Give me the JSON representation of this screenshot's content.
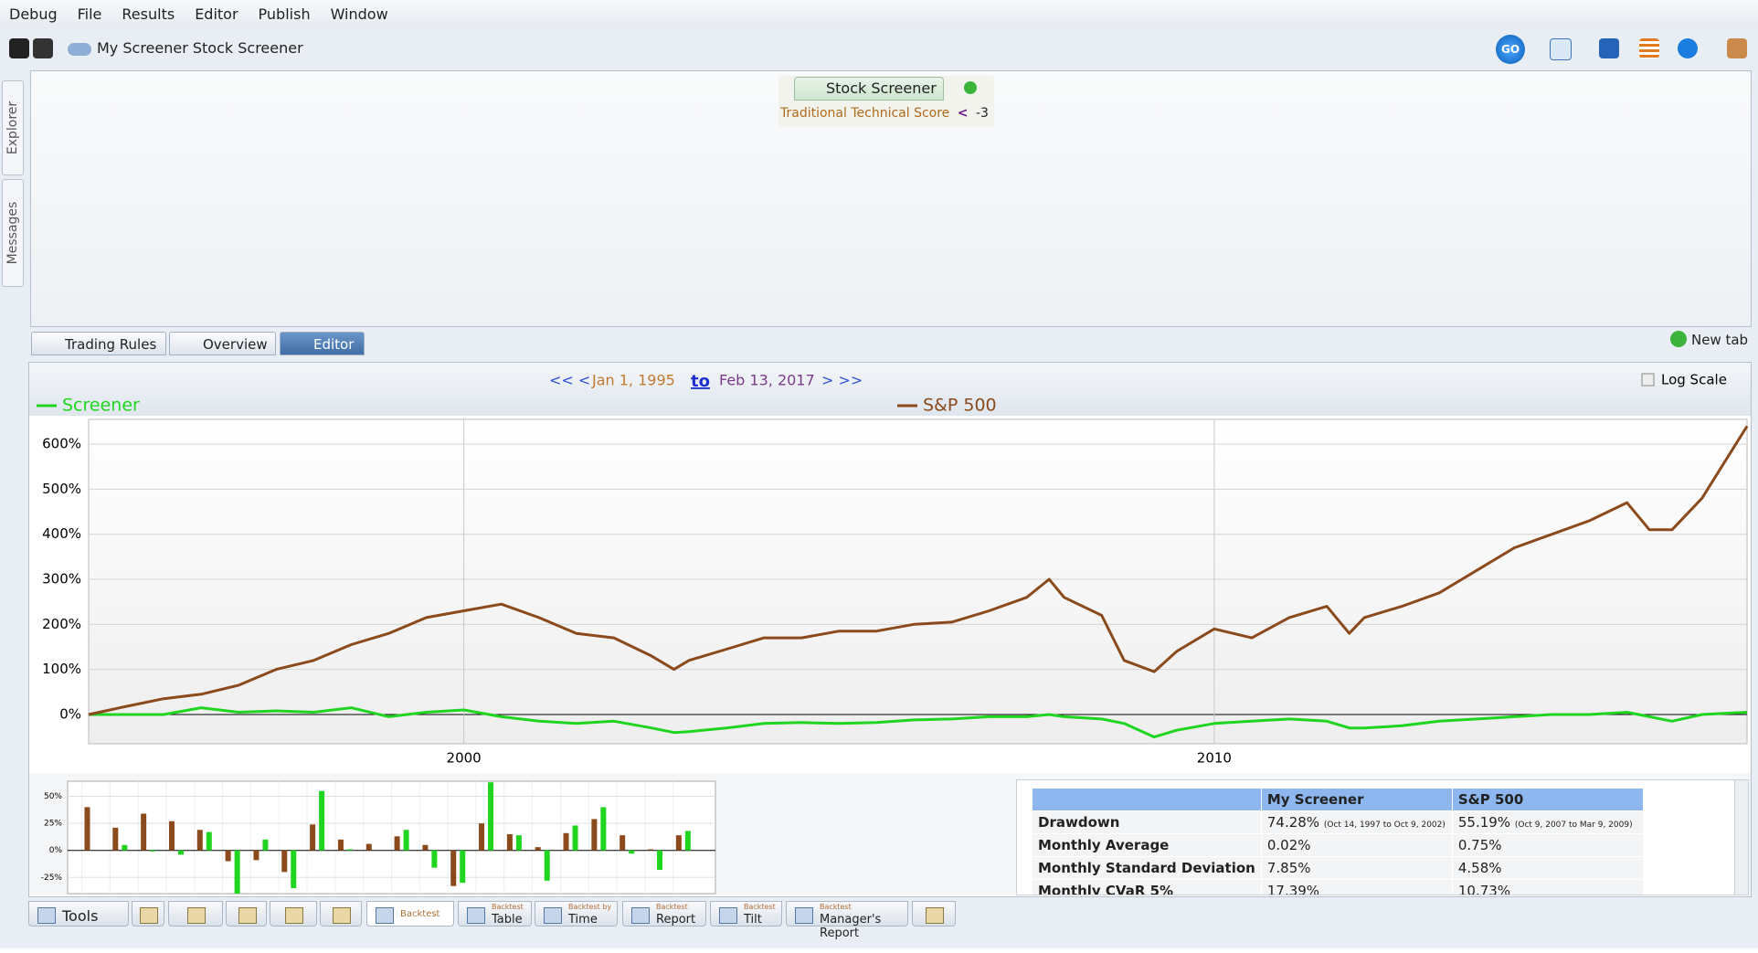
{
  "menu": [
    "Debug",
    "File",
    "Results",
    "Editor",
    "Publish",
    "Window"
  ],
  "toolbar": {
    "title": "My Screener Stock Screener",
    "go": "GO"
  },
  "side_tabs": [
    "Explorer",
    "Messages"
  ],
  "screener": {
    "tab": "Stock Screener",
    "rule": {
      "factor": "Traditional Technical Score",
      "operator": "<",
      "value": -3
    }
  },
  "editor_tabs": [
    "Trading Rules",
    "Overview",
    "Editor"
  ],
  "new_tab": "New tab",
  "date_range": {
    "back": "<< <",
    "start": "Jan 1, 1995",
    "to": "to",
    "end": "Feb 13, 2017",
    "forward": "> >>"
  },
  "log_scale_label": "Log Scale",
  "chart_data": [
    {
      "type": "line",
      "x": [
        1995,
        1995.5,
        1996,
        1996.5,
        1997,
        1997.5,
        1998,
        1998.5,
        1999,
        1999.5,
        2000,
        2000.5,
        2001,
        2001.5,
        2002,
        2002.5,
        2002.8,
        2003,
        2003.5,
        2004,
        2004.5,
        2005,
        2005.5,
        2006,
        2006.5,
        2007,
        2007.5,
        2007.8,
        2008,
        2008.5,
        2008.8,
        2009.2,
        2009.5,
        2010,
        2010.5,
        2011,
        2011.5,
        2011.8,
        2012,
        2012.5,
        2013,
        2013.5,
        2014,
        2014.5,
        2015,
        2015.5,
        2015.8,
        2016.1,
        2016.5,
        2017.1
      ],
      "series": [
        {
          "name": "Screener",
          "color": "#1fd51f",
          "values": [
            0,
            0,
            0,
            15,
            5,
            8,
            5,
            15,
            -5,
            5,
            10,
            -5,
            -15,
            -20,
            -15,
            -30,
            -40,
            -38,
            -30,
            -20,
            -18,
            -20,
            -18,
            -12,
            -10,
            -5,
            -5,
            0,
            -5,
            -10,
            -20,
            -50,
            -35,
            -20,
            -15,
            -10,
            -15,
            -30,
            -30,
            -25,
            -15,
            -10,
            -5,
            0,
            0,
            5,
            -5,
            -15,
            0,
            5
          ]
        },
        {
          "name": "S&P 500",
          "color": "#8b4a1c",
          "values": [
            0,
            18,
            35,
            45,
            65,
            100,
            120,
            155,
            180,
            215,
            230,
            245,
            215,
            180,
            170,
            130,
            100,
            120,
            145,
            170,
            170,
            185,
            185,
            200,
            205,
            230,
            260,
            300,
            260,
            220,
            120,
            95,
            140,
            190,
            170,
            215,
            240,
            180,
            215,
            240,
            270,
            320,
            370,
            400,
            430,
            470,
            410,
            410,
            480,
            640
          ]
        }
      ],
      "xlim": [
        1995,
        2017.1
      ],
      "xticks": [
        2000,
        2010
      ],
      "ylim": [
        -65,
        655
      ],
      "yticks": [
        {
          "value": 0,
          "label": "0%"
        },
        {
          "value": 100,
          "label": "100%"
        },
        {
          "value": 200,
          "label": "200%"
        },
        {
          "value": 300,
          "label": "300%"
        },
        {
          "value": 400,
          "label": "400%"
        },
        {
          "value": 500,
          "label": "500%"
        },
        {
          "value": 600,
          "label": "600%"
        }
      ],
      "grid": true
    },
    {
      "type": "bar",
      "categories": [
        null,
        null,
        null,
        null,
        null,
        null,
        null,
        null,
        null,
        null,
        null,
        null,
        null,
        null,
        null,
        null,
        null,
        null,
        null,
        null,
        null,
        null
      ],
      "series": [
        {
          "name": "S&P 500",
          "color": "#8b4a1c",
          "values": [
            40,
            21,
            34,
            27,
            19,
            -10,
            -9,
            -20,
            24,
            10,
            6,
            13,
            5,
            -33,
            25,
            15,
            3,
            16,
            29,
            14,
            1,
            14
          ]
        },
        {
          "name": "Screener",
          "color": "#1fd51f",
          "values": [
            0,
            5,
            -1,
            -4,
            17,
            -40,
            10,
            -35,
            55,
            1,
            0,
            19,
            -16,
            -30,
            63,
            14,
            -28,
            23,
            40,
            -3,
            -18,
            18
          ]
        }
      ],
      "ylim": [
        -40,
        64
      ],
      "yticks": [
        {
          "value": -25,
          "label": "-25%"
        },
        {
          "value": 0,
          "label": "0%"
        },
        {
          "value": 25,
          "label": "25%"
        },
        {
          "value": 50,
          "label": "50%"
        }
      ],
      "grid": true
    }
  ],
  "stats_table": {
    "header": [
      "My Screener",
      "S&P 500"
    ],
    "rows": [
      {
        "label": "Drawdown",
        "cells": [
          "74.28%",
          "55.19%"
        ],
        "notes": [
          "(Oct 14, 1997 to Oct 9, 2002)",
          "(Oct 9, 2007 to Mar 9, 2009)"
        ]
      },
      {
        "label": "Monthly Average",
        "cells": [
          "0.02%",
          "0.75%"
        ]
      },
      {
        "label": "Monthly Standard Deviation",
        "cells": [
          "7.85%",
          "4.58%"
        ]
      },
      {
        "label": "Monthly CVaR 5%",
        "cells": [
          "17.39%",
          "10.73%"
        ]
      }
    ]
  },
  "bottom_tabs": [
    {
      "label": "Tools"
    },
    {
      "label": "Backtest"
    },
    {
      "caption": "Backtest",
      "label": "Table"
    },
    {
      "caption": "Backtest by",
      "label": "Time"
    },
    {
      "caption": "Backtest",
      "label": "Report"
    },
    {
      "caption": "Backtest",
      "label": "Tilt"
    },
    {
      "caption": "Backtest",
      "label": "Manager's Report"
    }
  ]
}
